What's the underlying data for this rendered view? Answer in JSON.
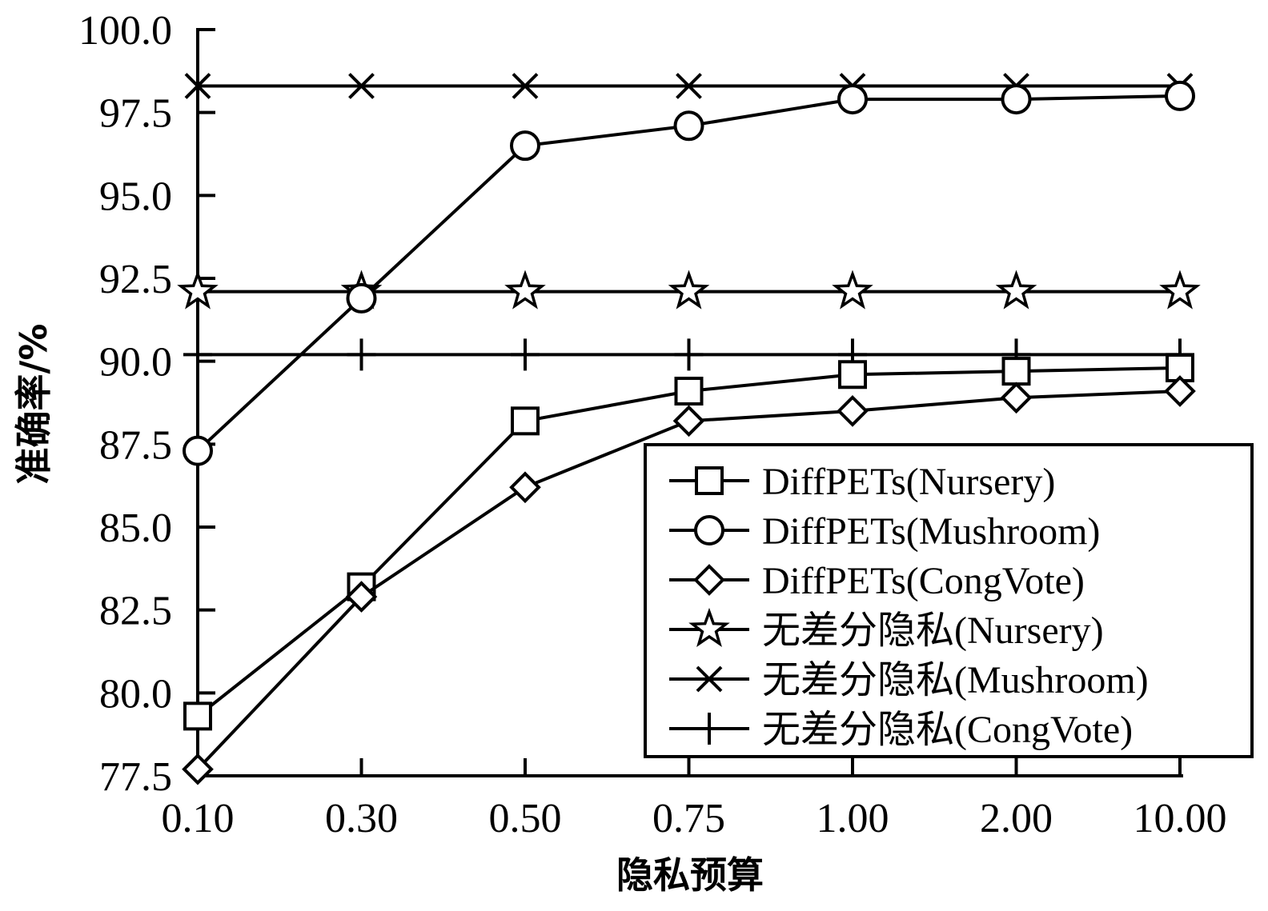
{
  "chart_data": {
    "type": "line",
    "categories": [
      "0.10",
      "0.30",
      "0.50",
      "0.75",
      "1.00",
      "2.00",
      "10.00"
    ],
    "xlabel": "隐私预算",
    "ylabel": "准确率/%",
    "ylim": [
      77.5,
      100.0
    ],
    "yticks": [
      "77.5",
      "80.0",
      "82.5",
      "85.0",
      "87.5",
      "90.0",
      "92.5",
      "95.0",
      "97.5",
      "100.0"
    ],
    "legend_position": "bottom-right",
    "grid": false,
    "series": [
      {
        "name": "DiffPETs(Nursery)",
        "marker": "square",
        "values": [
          79.3,
          83.2,
          88.2,
          89.1,
          89.6,
          89.7,
          89.8
        ]
      },
      {
        "name": "DiffPETs(Mushroom)",
        "marker": "circle",
        "values": [
          87.3,
          91.9,
          96.5,
          97.1,
          97.9,
          97.9,
          98.0
        ]
      },
      {
        "name": "DiffPETs(CongVote)",
        "marker": "diamond",
        "values": [
          77.7,
          82.9,
          86.2,
          88.2,
          88.5,
          88.9,
          89.1
        ]
      },
      {
        "name": "无差分隐私(Nursery)",
        "marker": "star",
        "values": [
          92.1,
          92.1,
          92.1,
          92.1,
          92.1,
          92.1,
          92.1
        ]
      },
      {
        "name": "无差分隐私(Mushroom)",
        "marker": "x",
        "values": [
          98.3,
          98.3,
          98.3,
          98.3,
          98.3,
          98.3,
          98.3
        ]
      },
      {
        "name": "无差分隐私(CongVote)",
        "marker": "plus",
        "values": [
          90.2,
          90.2,
          90.2,
          90.2,
          90.2,
          90.2,
          90.2
        ]
      }
    ]
  },
  "colors": {
    "line": "#000000",
    "background": "#ffffff"
  }
}
